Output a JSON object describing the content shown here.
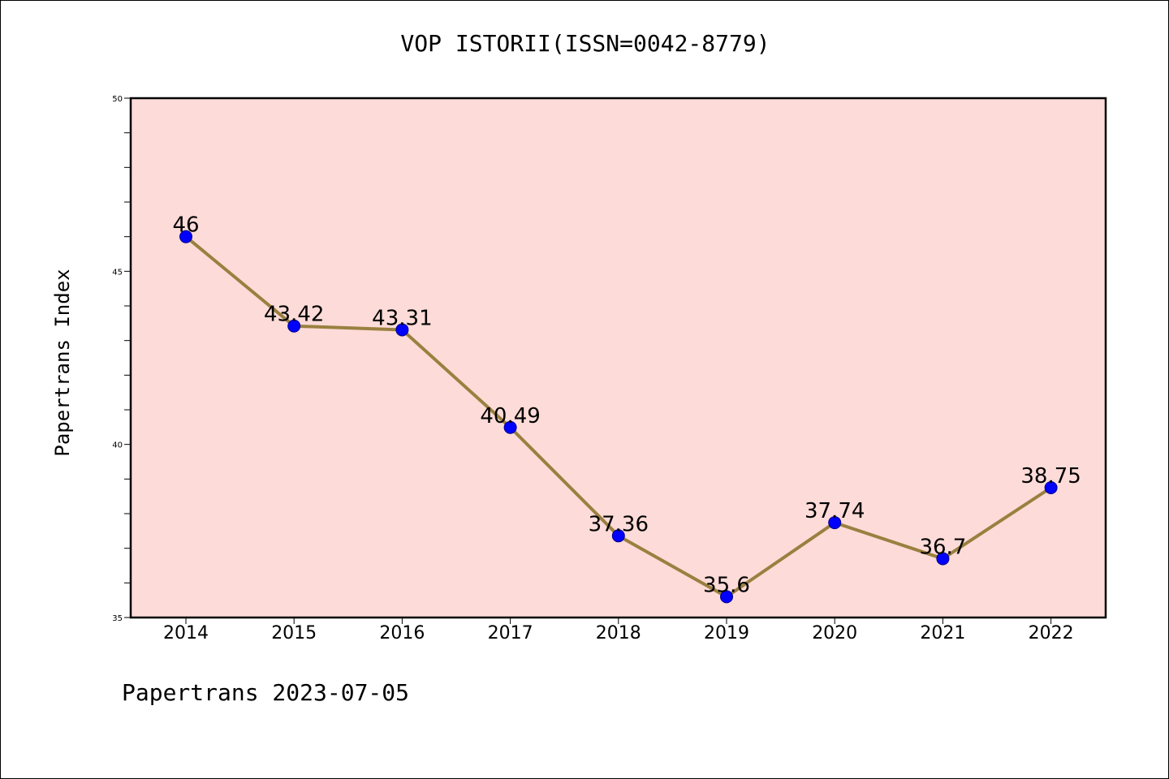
{
  "chart_data": {
    "type": "line",
    "title": "VOP ISTORII(ISSN=0042-8779)",
    "xlabel": "",
    "ylabel": "Papertrans Index",
    "categories": [
      "2014",
      "2015",
      "2016",
      "2017",
      "2018",
      "2019",
      "2020",
      "2021",
      "2022"
    ],
    "series": [
      {
        "values": [
          46,
          43.42,
          43.31,
          40.49,
          37.36,
          35.6,
          37.74,
          36.7,
          38.75
        ],
        "labels": [
          "46",
          "43.42",
          "43.31",
          "40.49",
          "37.36",
          "35.6",
          "37.74",
          "36.7",
          "38.75"
        ]
      }
    ],
    "ylim": [
      35,
      50
    ],
    "yticks": [
      35,
      40,
      45,
      50
    ],
    "grid": false,
    "colors": {
      "plot_background": "#FDDBD8",
      "line": "#9A8040",
      "marker": "#0000FF"
    }
  },
  "footer": "Papertrans 2023-07-05"
}
